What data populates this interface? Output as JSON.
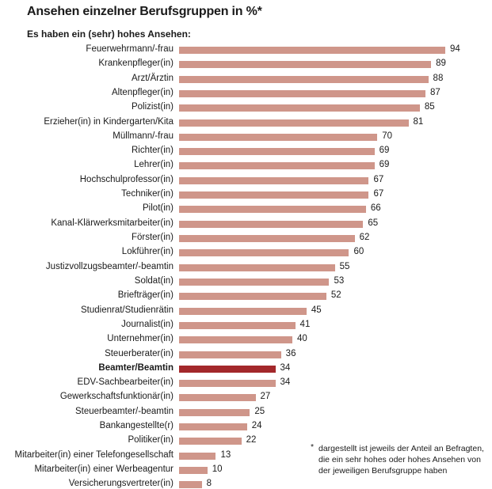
{
  "chart_data": {
    "type": "bar",
    "orientation": "horizontal",
    "title": "Ansehen einzelner Berufsgruppen in %*",
    "subtitle": "Es haben ein (sehr) hohes Ansehen:",
    "highlight": "Beamter/Beamtin",
    "colors": {
      "bar": "#cf968a",
      "highlight": "#a3282b"
    },
    "xlim": [
      0,
      100
    ],
    "categories": [
      "Feuerwehrmann/-frau",
      "Krankenpfleger(in)",
      "Arzt/Ärztin",
      "Altenpfleger(in)",
      "Polizist(in)",
      "Erzieher(in) in Kindergarten/Kita",
      "Müllmann/-frau",
      "Richter(in)",
      "Lehrer(in)",
      "Hochschulprofessor(in)",
      "Techniker(in)",
      "Pilot(in)",
      "Kanal-Klärwerksmitarbeiter(in)",
      "Förster(in)",
      "Lokführer(in)",
      "Justizvollzugsbeamter/-beamtin",
      "Soldat(in)",
      "Briefträger(in)",
      "Studienrat/Studienrätin",
      "Journalist(in)",
      "Unternehmer(in)",
      "Steuerberater(in)",
      "Beamter/Beamtin",
      "EDV-Sachbearbeiter(in)",
      "Gewerkschaftsfunktionär(in)",
      "Steuerbeamter/-beamtin",
      "Bankangestellte(r)",
      "Politiker(in)",
      "Mitarbeiter(in) einer Telefongesellschaft",
      "Mitarbeiter(in) einer Werbeagentur",
      "Versicherungsvertreter(in)"
    ],
    "values": [
      94,
      89,
      88,
      87,
      85,
      81,
      70,
      69,
      69,
      67,
      67,
      66,
      65,
      62,
      60,
      55,
      53,
      52,
      45,
      41,
      40,
      36,
      34,
      34,
      27,
      25,
      24,
      22,
      13,
      10,
      8
    ]
  },
  "footnote": {
    "marker": "*",
    "text": "dargestellt ist jeweils der Anteil an Befragten, die ein sehr hohes oder hohes Ansehen von der jeweiligen Berufsgruppe haben"
  }
}
